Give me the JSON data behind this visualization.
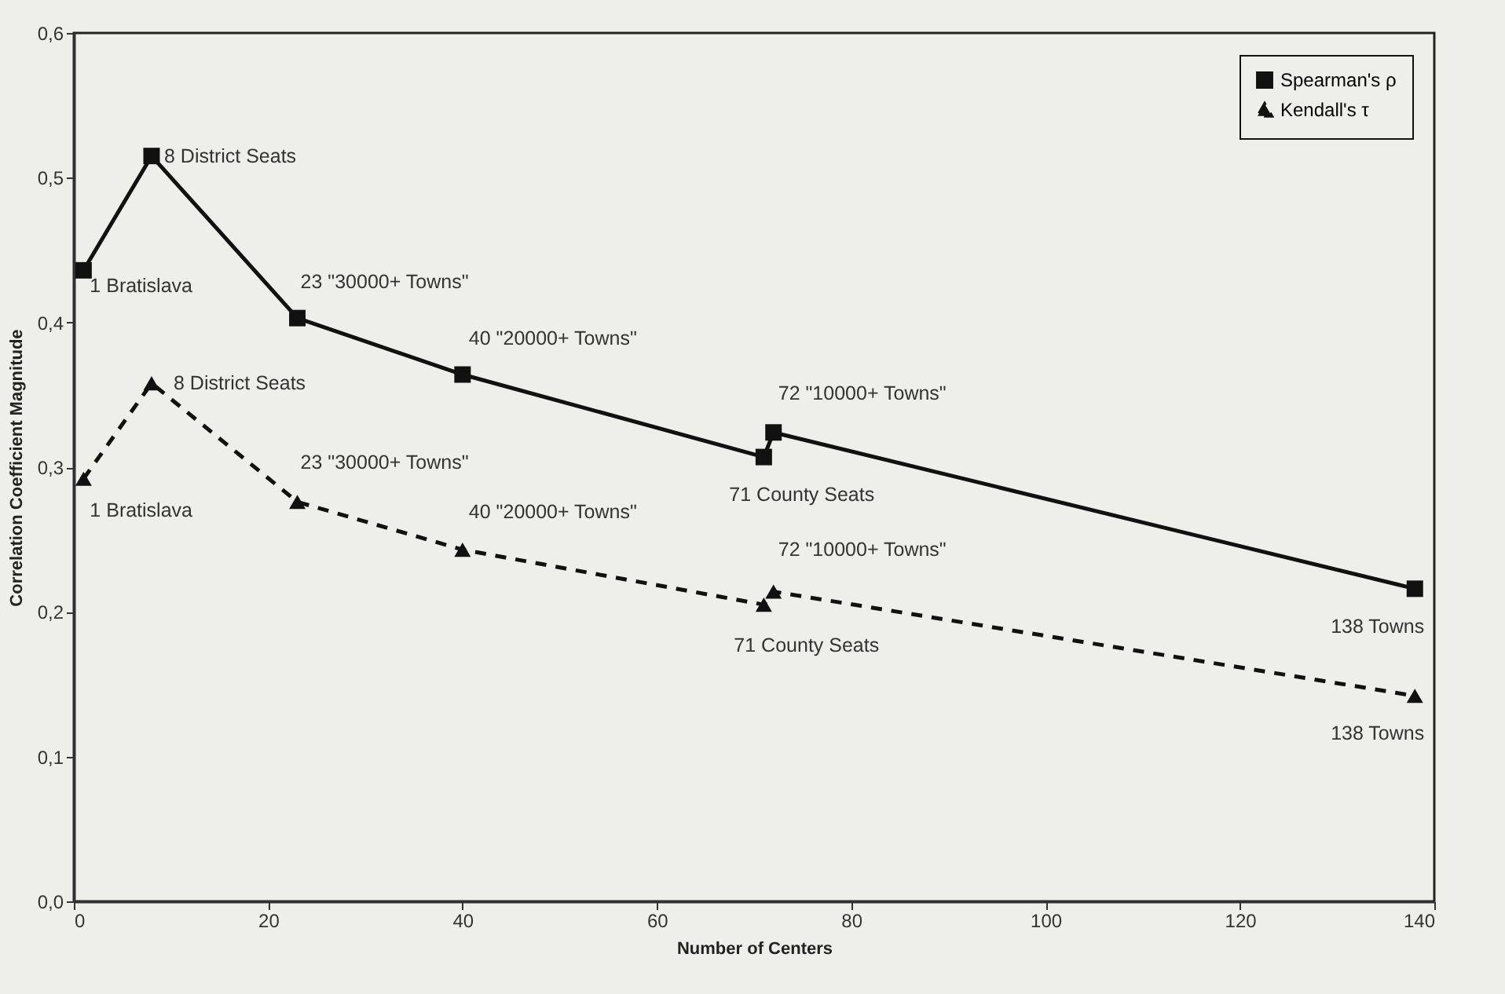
{
  "chart_data": {
    "type": "line",
    "xlabel": "Number of Centers",
    "ylabel": "Correlation Coefficient Magnitude",
    "x": [
      1,
      8,
      23,
      40,
      71,
      72,
      138
    ],
    "series": [
      {
        "name": "Spearman's ρ",
        "color": "#111111",
        "marker": "square",
        "line_style": "solid",
        "values": [
          0.436,
          0.515,
          0.403,
          0.364,
          0.307,
          0.324,
          0.216
        ]
      },
      {
        "name": "Kendall's τ",
        "color": "#111111",
        "marker": "triangle",
        "line_style": "dashed",
        "values": [
          0.292,
          0.358,
          0.276,
          0.243,
          0.205,
          0.214,
          0.142
        ]
      }
    ],
    "xlim": [
      0,
      140
    ],
    "xticks": [
      0,
      20,
      40,
      60,
      80,
      100,
      120,
      140
    ],
    "ylim": [
      0,
      0.6
    ],
    "yticks": [
      {
        "value": 0,
        "label": "0,0"
      },
      {
        "value": 0.1,
        "label": "0,1"
      },
      {
        "value": 0.2,
        "label": "0,2"
      },
      {
        "value": 0.3,
        "label": "0,3"
      },
      {
        "value": 0.4,
        "label": "0,4"
      },
      {
        "value": 0.5,
        "label": "0,5"
      },
      {
        "value": 0.6,
        "label": "0,6"
      }
    ],
    "grid": false,
    "legend": "top right",
    "annotations": [
      {
        "text": "1 Bratislava",
        "x": 1,
        "y": 0.436
      },
      {
        "text": "8 District Seats",
        "x": 8,
        "y": 0.515
      },
      {
        "text": "23 \"30000+ Towns\"",
        "x": 23,
        "y": 0.403
      },
      {
        "text": "40 \"20000+ Towns\"",
        "x": 40,
        "y": 0.364
      },
      {
        "text": "71 County Seats",
        "x": 71,
        "y": 0.307
      },
      {
        "text": "72 \"10000+ Towns\"",
        "x": 72,
        "y": 0.324
      },
      {
        "text": "138 Towns",
        "x": 138,
        "y": 0.216
      },
      {
        "text": "1 Bratislava",
        "x": 1,
        "y": 0.292
      },
      {
        "text": "8 District Seats",
        "x": 8,
        "y": 0.358
      },
      {
        "text": "23 \"30000+ Towns\"",
        "x": 23,
        "y": 0.276
      },
      {
        "text": "40 \"20000+ Towns\"",
        "x": 40,
        "y": 0.243
      },
      {
        "text": "71 County Seats",
        "x": 71,
        "y": 0.205
      },
      {
        "text": "72 \"10000+ Towns\"",
        "x": 72,
        "y": 0.214
      },
      {
        "text": "138 Towns",
        "x": 138,
        "y": 0.142
      }
    ]
  }
}
